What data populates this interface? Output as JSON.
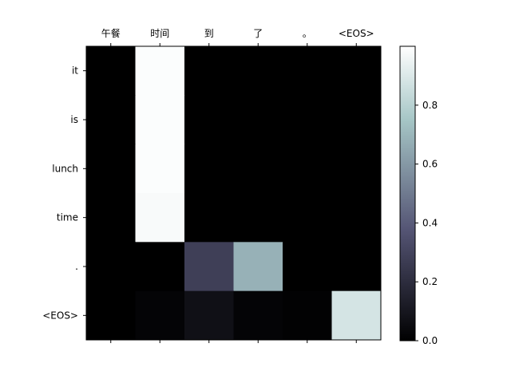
{
  "chart_data": {
    "type": "heatmap",
    "x_tick_labels": [
      "午餐",
      "时间",
      "到",
      "了",
      "。",
      "<EOS>"
    ],
    "y_tick_labels": [
      "it",
      "is",
      "lunch",
      "time",
      ".",
      "<EOS>"
    ],
    "values": [
      [
        0.0,
        0.99,
        0.0,
        0.0,
        0.0,
        0.0
      ],
      [
        0.0,
        0.99,
        0.0,
        0.0,
        0.0,
        0.0
      ],
      [
        0.0,
        0.99,
        0.0,
        0.0,
        0.0,
        0.0
      ],
      [
        0.0,
        0.98,
        0.0,
        0.0,
        0.0,
        0.0
      ],
      [
        0.0,
        0.0,
        0.28,
        0.68,
        0.0,
        0.0
      ],
      [
        0.0,
        0.02,
        0.07,
        0.02,
        0.01,
        0.88
      ]
    ],
    "colormap": "bone",
    "colorbar": {
      "range": [
        0.0,
        1.0
      ],
      "ticks": [
        0.0,
        0.2,
        0.4,
        0.6,
        0.8
      ],
      "tick_labels": [
        "0.0",
        "0.2",
        "0.4",
        "0.6",
        "0.8"
      ]
    },
    "x_axis_position": "top",
    "grid": false
  }
}
